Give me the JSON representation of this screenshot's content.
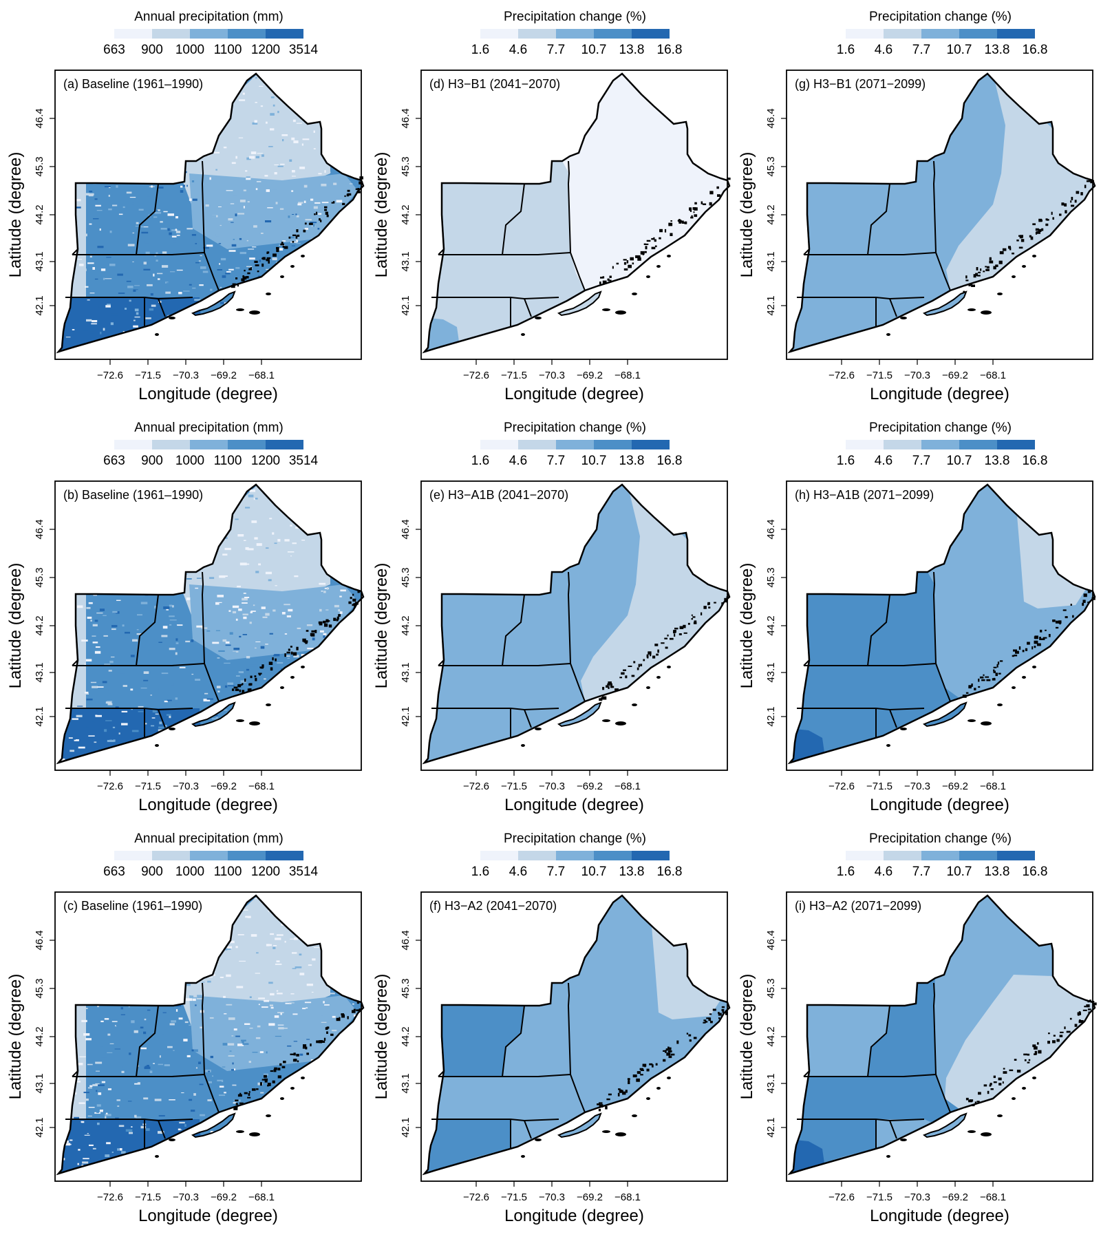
{
  "figure": {
    "axes": {
      "xlabel": "Longitude (degree)",
      "ylabel": "Latitude (degree)",
      "xticks": [
        "−72.6",
        "−71.5",
        "−70.3",
        "−69.2",
        "−68.1"
      ],
      "yticks": [
        "46.4",
        "45.3",
        "44.2",
        "43.1",
        "42.1"
      ]
    },
    "legends": {
      "baseline": {
        "title": "Annual precipitation (mm)",
        "ticks": [
          "663",
          "900",
          "1000",
          "1100",
          "1200",
          "3514"
        ],
        "colors": [
          "#eff3fb",
          "#c4d7e8",
          "#7fb1da",
          "#4c8fc7",
          "#2368b1"
        ]
      },
      "change": {
        "title": "Precipitation change (%)",
        "ticks": [
          "1.6",
          "4.6",
          "7.7",
          "10.7",
          "13.8",
          "16.8"
        ],
        "colors": [
          "#eff3fb",
          "#c4d7e8",
          "#7fb1da",
          "#4c8fc7",
          "#2368b1"
        ]
      }
    },
    "panels": [
      {
        "id": "a",
        "label": "(a) Baseline (1961–1990)",
        "legend": "baseline"
      },
      {
        "id": "d",
        "label": "(d) H3−B1 (2041−2070)",
        "legend": "change"
      },
      {
        "id": "g",
        "label": "(g) H3−B1 (2071−2099)",
        "legend": "change"
      },
      {
        "id": "b",
        "label": "(b) Baseline (1961–1990)",
        "legend": "baseline"
      },
      {
        "id": "e",
        "label": "(e) H3−A1B (2041−2070)",
        "legend": "change"
      },
      {
        "id": "h",
        "label": "(h) H3−A1B (2071−2099)",
        "legend": "change"
      },
      {
        "id": "c",
        "label": "(c) Baseline (1961–1990)",
        "legend": "baseline"
      },
      {
        "id": "f",
        "label": "(f) H3−A2 (2041−2070)",
        "legend": "change"
      },
      {
        "id": "i",
        "label": "(i) H3−A2 (2071−2099)",
        "legend": "change"
      }
    ]
  }
}
